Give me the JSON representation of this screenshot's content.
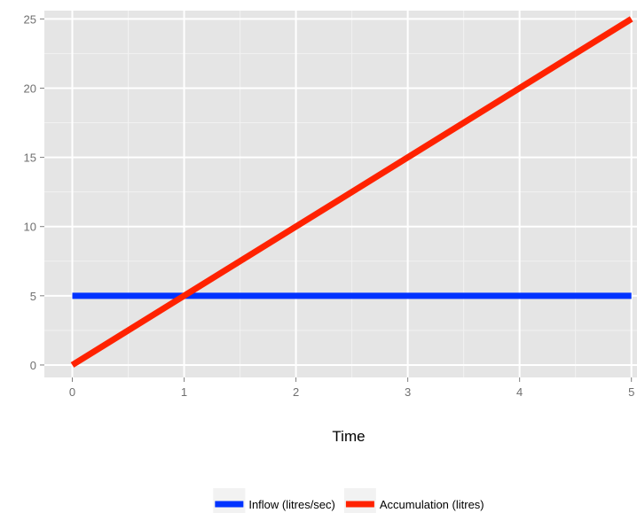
{
  "chart_data": {
    "type": "line",
    "title": "",
    "xlabel": "Time",
    "ylabel": "",
    "x": [
      0,
      5
    ],
    "xlim": [
      -0.25,
      5.05
    ],
    "ylim": [
      -0.9,
      25.6
    ],
    "xticks": [
      0,
      1,
      2,
      3,
      4,
      5
    ],
    "yticks": [
      0,
      5,
      10,
      15,
      20,
      25
    ],
    "xtick_labels": [
      "0",
      "1",
      "2",
      "3",
      "4",
      "5"
    ],
    "ytick_labels": [
      "0",
      "5",
      "10",
      "15",
      "20",
      "25"
    ],
    "grid": true,
    "legend_position": "bottom",
    "series": [
      {
        "name": "Inflow (litres/sec)",
        "color": "#0033ff",
        "values": [
          5,
          5
        ]
      },
      {
        "name": "Accumulation (litres)",
        "color": "#ff2200",
        "values": [
          0,
          25
        ]
      }
    ]
  }
}
